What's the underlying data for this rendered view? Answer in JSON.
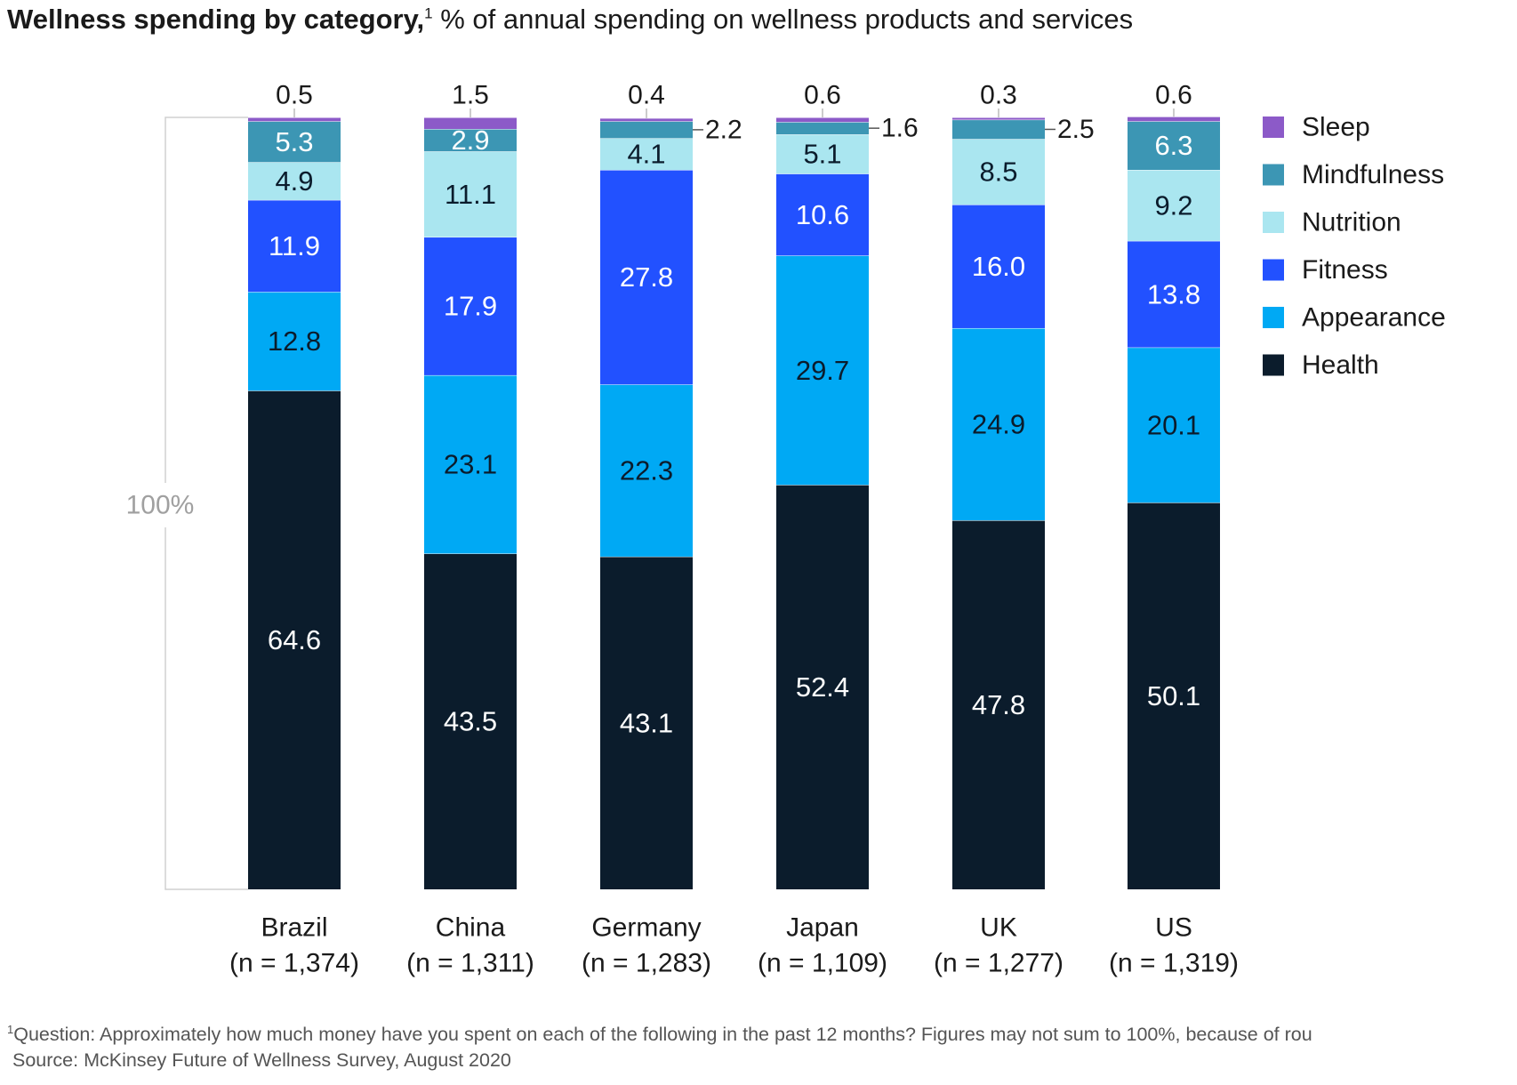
{
  "header": {
    "title_bold": "Wellness spending by category,",
    "title_sup": "1",
    "subtitle": " % of annual spending on wellness products and services"
  },
  "chart_data": {
    "type": "bar",
    "stacked": true,
    "title": "Wellness spending by category,",
    "subtitle": "% of annual spending on wellness products and services",
    "total_label": "100%",
    "ylim": [
      0,
      100
    ],
    "grid": false,
    "legend_position": "right",
    "categories": [
      "Brazil",
      "China",
      "Germany",
      "Japan",
      "UK",
      "US"
    ],
    "category_sublabels": [
      "(n = 1,374)",
      "(n = 1,311)",
      "(n = 1,283)",
      "(n = 1,109)",
      "(n = 1,277)",
      "(n = 1,319)"
    ],
    "series": [
      {
        "name": "Health",
        "color": "#0b1c2c",
        "label_color": "#ffffff",
        "values": [
          64.6,
          43.5,
          43.1,
          52.4,
          47.8,
          50.1
        ],
        "labels": [
          "64.6",
          "43.5",
          "43.1",
          "52.4",
          "47.8",
          "50.1"
        ]
      },
      {
        "name": "Appearance",
        "color": "#00a9f4",
        "label_color": "#0b1c2c",
        "values": [
          12.8,
          23.1,
          22.3,
          29.7,
          24.9,
          20.1
        ],
        "labels": [
          "12.8",
          "23.1",
          "22.3",
          "29.7",
          "24.9",
          "20.1"
        ]
      },
      {
        "name": "Fitness",
        "color": "#2251ff",
        "label_color": "#ffffff",
        "values": [
          11.9,
          17.9,
          27.8,
          10.6,
          16.0,
          13.8
        ],
        "labels": [
          "11.9",
          "17.9",
          "27.8",
          "10.6",
          "16.0",
          "13.8"
        ]
      },
      {
        "name": "Nutrition",
        "color": "#aae6f0",
        "label_color": "#0b1c2c",
        "values": [
          4.9,
          11.1,
          4.1,
          5.1,
          8.5,
          9.2
        ],
        "labels": [
          "4.9",
          "11.1",
          "4.1",
          "5.1",
          "8.5",
          "9.2"
        ]
      },
      {
        "name": "Mindfulness",
        "color": "#3c96b4",
        "label_color": "#ffffff",
        "values": [
          5.3,
          2.9,
          2.2,
          1.6,
          2.5,
          6.3
        ],
        "labels": [
          "5.3",
          "2.9",
          "2.2",
          "1.6",
          "2.5",
          "6.3"
        ]
      },
      {
        "name": "Sleep",
        "color": "#8c5ac8",
        "label_color": "#1a1a1a",
        "values": [
          0.5,
          1.5,
          0.4,
          0.6,
          0.3,
          0.6
        ],
        "labels": [
          "0.5",
          "1.5",
          "0.4",
          "0.6",
          "0.3",
          "0.6"
        ]
      }
    ],
    "legend_order": [
      "Sleep",
      "Mindfulness",
      "Nutrition",
      "Fitness",
      "Appearance",
      "Health"
    ]
  },
  "footer": {
    "footnote_sup": "1",
    "footnote": "Question: Approximately how much money have you spent on each of the following in the past 12 months? Figures may not sum to 100%, because of rou",
    "source": "Source: McKinsey Future of Wellness Survey, August 2020"
  }
}
